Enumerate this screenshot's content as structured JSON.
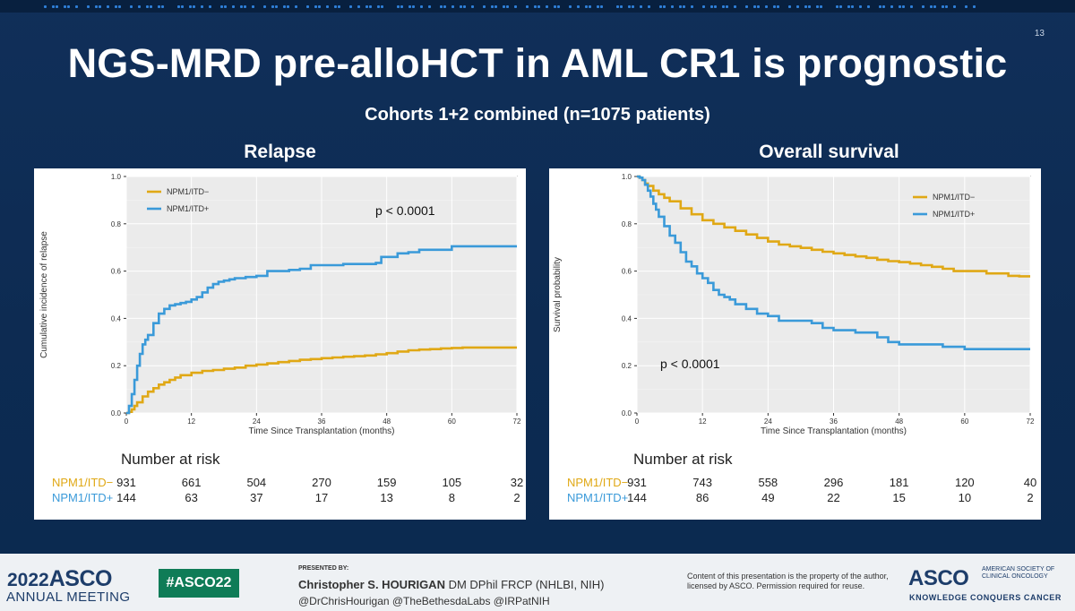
{
  "slide": {
    "number": "13",
    "title": "NGS-MRD pre-alloHCT in AML CR1 is prognostic",
    "subtitle": "Cohorts 1+2 combined (n=1075 patients)"
  },
  "colors": {
    "itd_neg": "#e0a815",
    "itd_pos": "#3a9ad9",
    "background": "#0c2d57",
    "hashtag_bg": "#0f7c57"
  },
  "panels": {
    "relapse": {
      "heading": "Relapse",
      "risk_heading": "Number at risk",
      "risk_labels": [
        "NPM1/ITD−",
        "NPM1/ITD+"
      ],
      "risk_counts": [
        [
          "931",
          "661",
          "504",
          "270",
          "159",
          "105",
          "32"
        ],
        [
          "144",
          "63",
          "37",
          "17",
          "13",
          "8",
          "2"
        ]
      ]
    },
    "survival": {
      "heading": "Overall survival",
      "risk_heading": "Number at risk",
      "risk_labels": [
        "NPM1/ITD−",
        "NPM1/ITD+"
      ],
      "risk_counts": [
        [
          "931",
          "743",
          "558",
          "296",
          "181",
          "120",
          "40"
        ],
        [
          "144",
          "86",
          "49",
          "22",
          "15",
          "10",
          "2"
        ]
      ]
    }
  },
  "chart_data": [
    {
      "type": "line",
      "title": "Relapse",
      "xlabel": "Time Since Transplantation (months)",
      "ylabel": "Cumulative incidence of relapse",
      "xlim": [
        0,
        72
      ],
      "ylim": [
        0,
        1
      ],
      "xticks": [
        "0",
        "12",
        "24",
        "36",
        "48",
        "60",
        "72"
      ],
      "yticks": [
        "0.0",
        "0.2",
        "0.4",
        "0.6",
        "0.8",
        "1.0"
      ],
      "grid": true,
      "legend_position": "top-left",
      "annotation": "p < 0.0001",
      "series": [
        {
          "name": "NPM1/ITD−",
          "color": "#e0a815",
          "x": [
            0,
            0.5,
            1,
            1.5,
            2,
            3,
            4,
            5,
            6,
            7,
            8,
            9,
            10,
            12,
            14,
            16,
            18,
            20,
            22,
            24,
            26,
            28,
            30,
            32,
            34,
            36,
            38,
            40,
            42,
            44,
            46,
            48,
            50,
            52,
            54,
            56,
            58,
            60,
            62,
            72
          ],
          "y": [
            0,
            0.005,
            0.015,
            0.03,
            0.045,
            0.07,
            0.09,
            0.105,
            0.12,
            0.13,
            0.14,
            0.15,
            0.16,
            0.17,
            0.178,
            0.182,
            0.187,
            0.192,
            0.2,
            0.205,
            0.21,
            0.215,
            0.22,
            0.225,
            0.228,
            0.232,
            0.235,
            0.238,
            0.24,
            0.243,
            0.248,
            0.253,
            0.26,
            0.265,
            0.268,
            0.27,
            0.273,
            0.275,
            0.277,
            0.277
          ]
        },
        {
          "name": "NPM1/ITD+",
          "color": "#3a9ad9",
          "x": [
            0,
            0.5,
            1,
            1.5,
            2,
            2.5,
            3,
            3.5,
            4,
            5,
            6,
            7,
            8,
            9,
            10,
            11,
            12,
            13,
            14,
            15,
            16,
            17,
            18,
            19,
            20,
            22,
            24,
            26,
            28,
            30,
            32,
            34,
            36,
            38,
            40,
            44,
            46,
            47,
            48,
            50,
            52,
            54,
            57,
            60,
            72
          ],
          "y": [
            0,
            0.03,
            0.08,
            0.14,
            0.2,
            0.25,
            0.29,
            0.31,
            0.33,
            0.38,
            0.42,
            0.44,
            0.455,
            0.46,
            0.465,
            0.47,
            0.48,
            0.49,
            0.51,
            0.53,
            0.545,
            0.555,
            0.56,
            0.565,
            0.57,
            0.575,
            0.58,
            0.6,
            0.6,
            0.605,
            0.61,
            0.625,
            0.625,
            0.625,
            0.63,
            0.63,
            0.635,
            0.66,
            0.66,
            0.675,
            0.68,
            0.69,
            0.69,
            0.705,
            0.705
          ]
        }
      ]
    },
    {
      "type": "line",
      "title": "Overall survival",
      "xlabel": "Time Since Transplantation (months)",
      "ylabel": "Survival probability",
      "xlim": [
        0,
        72
      ],
      "ylim": [
        0,
        1
      ],
      "xticks": [
        "0",
        "12",
        "24",
        "36",
        "48",
        "60",
        "72"
      ],
      "yticks": [
        "0.0",
        "0.2",
        "0.4",
        "0.6",
        "0.8",
        "1.0"
      ],
      "grid": true,
      "legend_position": "top-right",
      "annotation": "p < 0.0001",
      "series": [
        {
          "name": "NPM1/ITD−",
          "color": "#e0a815",
          "x": [
            0,
            0.5,
            1,
            1.5,
            2,
            3,
            4,
            5,
            6,
            8,
            10,
            12,
            14,
            16,
            18,
            20,
            22,
            24,
            26,
            28,
            30,
            32,
            34,
            36,
            38,
            40,
            42,
            44,
            46,
            48,
            50,
            52,
            54,
            56,
            58,
            62,
            64,
            66,
            68,
            70,
            72
          ],
          "y": [
            1,
            0.995,
            0.985,
            0.97,
            0.96,
            0.94,
            0.925,
            0.91,
            0.895,
            0.865,
            0.84,
            0.815,
            0.8,
            0.785,
            0.77,
            0.755,
            0.74,
            0.725,
            0.712,
            0.705,
            0.698,
            0.69,
            0.682,
            0.675,
            0.668,
            0.662,
            0.656,
            0.648,
            0.642,
            0.638,
            0.632,
            0.625,
            0.618,
            0.61,
            0.6,
            0.6,
            0.59,
            0.59,
            0.58,
            0.578,
            0.578
          ]
        },
        {
          "name": "NPM1/ITD+",
          "color": "#3a9ad9",
          "x": [
            0,
            0.5,
            1,
            1.5,
            2,
            2.5,
            3,
            3.5,
            4,
            5,
            6,
            7,
            8,
            9,
            10,
            11,
            12,
            13,
            14,
            15,
            16,
            17,
            18,
            20,
            22,
            24,
            26,
            28,
            30,
            32,
            34,
            36,
            40,
            44,
            46,
            48,
            54,
            56,
            60,
            72
          ],
          "y": [
            1,
            0.995,
            0.985,
            0.965,
            0.94,
            0.915,
            0.885,
            0.86,
            0.83,
            0.79,
            0.75,
            0.72,
            0.68,
            0.64,
            0.62,
            0.59,
            0.57,
            0.55,
            0.52,
            0.5,
            0.49,
            0.48,
            0.46,
            0.44,
            0.42,
            0.41,
            0.39,
            0.39,
            0.39,
            0.38,
            0.36,
            0.35,
            0.34,
            0.32,
            0.3,
            0.29,
            0.29,
            0.28,
            0.27,
            0.27
          ]
        }
      ]
    }
  ],
  "footer": {
    "year": "2022",
    "asco": "ASCO",
    "annual": "ANNUAL MEETING",
    "hashtag": "#ASCO22",
    "presented_by": "PRESENTED BY:",
    "presenter_name": "Christopher S. HOURIGAN",
    "presenter_creds": " DM DPhil FRCP (NHLBI, NIH)",
    "handles": "@DrChrisHourigan @TheBethesdaLabs @IRPatNIH",
    "notice": "Content of this presentation is the property of the author, licensed by ASCO. Permission required for reuse.",
    "logo": "ASCO",
    "society": "AMERICAN SOCIETY OF CLINICAL ONCOLOGY",
    "tagline": "KNOWLEDGE CONQUERS CANCER"
  }
}
